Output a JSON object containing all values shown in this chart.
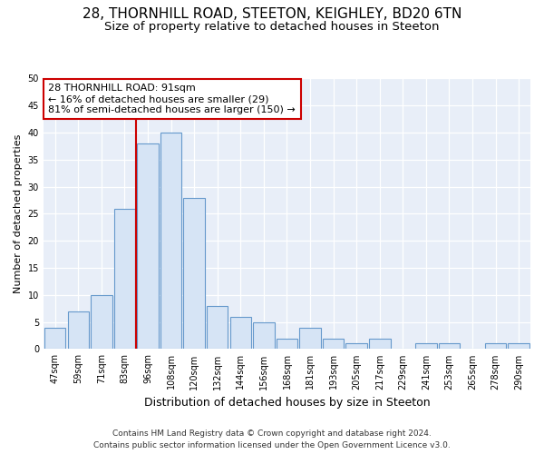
{
  "title1": "28, THORNHILL ROAD, STEETON, KEIGHLEY, BD20 6TN",
  "title2": "Size of property relative to detached houses in Steeton",
  "xlabel": "Distribution of detached houses by size in Steeton",
  "ylabel": "Number of detached properties",
  "bar_labels": [
    "47sqm",
    "59sqm",
    "71sqm",
    "83sqm",
    "96sqm",
    "108sqm",
    "120sqm",
    "132sqm",
    "144sqm",
    "156sqm",
    "168sqm",
    "181sqm",
    "193sqm",
    "205sqm",
    "217sqm",
    "229sqm",
    "241sqm",
    "253sqm",
    "265sqm",
    "278sqm",
    "290sqm"
  ],
  "bar_values": [
    4,
    7,
    10,
    26,
    38,
    40,
    28,
    8,
    6,
    5,
    2,
    4,
    2,
    1,
    2,
    0,
    1,
    1,
    0,
    1,
    1
  ],
  "bar_color": "#d6e4f5",
  "bar_edge_color": "#6699cc",
  "vline_color": "#cc0000",
  "annotation_title": "28 THORNHILL ROAD: 91sqm",
  "annotation_line2": "← 16% of detached houses are smaller (29)",
  "annotation_line3": "81% of semi-detached houses are larger (150) →",
  "annotation_box_facecolor": "#ffffff",
  "annotation_edge_color": "#cc0000",
  "ylim": [
    0,
    50
  ],
  "yticks": [
    0,
    5,
    10,
    15,
    20,
    25,
    30,
    35,
    40,
    45,
    50
  ],
  "footer1": "Contains HM Land Registry data © Crown copyright and database right 2024.",
  "footer2": "Contains public sector information licensed under the Open Government Licence v3.0.",
  "bg_color": "#ffffff",
  "plot_bg_color": "#e8eef8",
  "grid_color": "#ffffff",
  "title1_fontsize": 11,
  "title2_fontsize": 9.5,
  "xlabel_fontsize": 9,
  "ylabel_fontsize": 8,
  "tick_fontsize": 7,
  "footer_fontsize": 6.5,
  "ann_fontsize": 8
}
